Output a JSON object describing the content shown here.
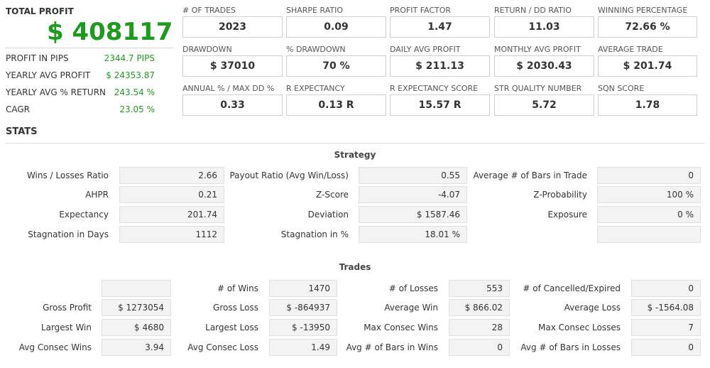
{
  "total_profit": {
    "label": "TOTAL PROFIT",
    "value": "$ 408117"
  },
  "side_stats": [
    {
      "label": "PROFIT IN PIPS",
      "value": "2344.7 PIPS"
    },
    {
      "label": "YEARLY AVG PROFIT",
      "value": "$ 24353.87"
    },
    {
      "label": "YEARLY AVG % RETURN",
      "value": "243.54 %"
    },
    {
      "label": "CAGR",
      "value": "23.05 %"
    }
  ],
  "metrics": [
    [
      {
        "label": "# OF TRADES",
        "value": "2023"
      },
      {
        "label": "SHARPE RATIO",
        "value": "0.09"
      },
      {
        "label": "PROFIT FACTOR",
        "value": "1.47"
      },
      {
        "label": "RETURN / DD RATIO",
        "value": "11.03"
      },
      {
        "label": "WINNING PERCENTAGE",
        "value": "72.66 %"
      }
    ],
    [
      {
        "label": "DRAWDOWN",
        "value": "$ 37010"
      },
      {
        "label": "% DRAWDOWN",
        "value": "70 %"
      },
      {
        "label": "DAILY AVG PROFIT",
        "value": "$ 211.13"
      },
      {
        "label": "MONTHLY AVG PROFIT",
        "value": "$ 2030.43"
      },
      {
        "label": "AVERAGE TRADE",
        "value": "$ 201.74"
      }
    ],
    [
      {
        "label": "ANNUAL % / MAX DD %",
        "value": "0.33"
      },
      {
        "label": "R EXPECTANCY",
        "value": "0.13 R"
      },
      {
        "label": "R EXPECTANCY SCORE",
        "value": "15.57 R"
      },
      {
        "label": "STR QUALITY NUMBER",
        "value": "5.72"
      },
      {
        "label": "SQN SCORE",
        "value": "1.78"
      }
    ]
  ],
  "stats_title": "STATS",
  "strategy": {
    "title": "Strategy",
    "rows": [
      [
        {
          "label": "Wins / Losses Ratio",
          "value": "2.66"
        },
        {
          "label": "Payout Ratio (Avg Win/Loss)",
          "value": "0.55"
        },
        {
          "label": "Average # of Bars in Trade",
          "value": "0"
        }
      ],
      [
        {
          "label": "AHPR",
          "value": "0.21"
        },
        {
          "label": "Z-Score",
          "value": "-4.07"
        },
        {
          "label": "Z-Probability",
          "value": "100 %"
        }
      ],
      [
        {
          "label": "Expectancy",
          "value": "201.74"
        },
        {
          "label": "Deviation",
          "value": "$ 1587.46"
        },
        {
          "label": "Exposure",
          "value": "0 %"
        }
      ],
      [
        {
          "label": "Stagnation in Days",
          "value": "1112"
        },
        {
          "label": "Stagnation in %",
          "value": "18.01 %"
        },
        {
          "label": "",
          "value": ""
        }
      ]
    ]
  },
  "trades": {
    "title": "Trades",
    "rows": [
      [
        {
          "label": "",
          "value": ""
        },
        {
          "label": "# of Wins",
          "value": "1470"
        },
        {
          "label": "# of Losses",
          "value": "553"
        },
        {
          "label": "# of Cancelled/Expired",
          "value": "0"
        }
      ],
      [
        {
          "label": "Gross Profit",
          "value": "$ 1273054"
        },
        {
          "label": "Gross Loss",
          "value": "$ -864937"
        },
        {
          "label": "Average Win",
          "value": "$ 866.02"
        },
        {
          "label": "Average Loss",
          "value": "$ -1564.08"
        }
      ],
      [
        {
          "label": "Largest Win",
          "value": "$ 4680"
        },
        {
          "label": "Largest Loss",
          "value": "$ -13950"
        },
        {
          "label": "Max Consec Wins",
          "value": "28"
        },
        {
          "label": "Max Consec Losses",
          "value": "7"
        }
      ],
      [
        {
          "label": "Avg Consec Wins",
          "value": "3.94"
        },
        {
          "label": "Avg Consec Loss",
          "value": "1.49"
        },
        {
          "label": "Avg # of Bars in Wins",
          "value": "0"
        },
        {
          "label": "Avg # of Bars in Losses",
          "value": "0"
        }
      ]
    ]
  }
}
